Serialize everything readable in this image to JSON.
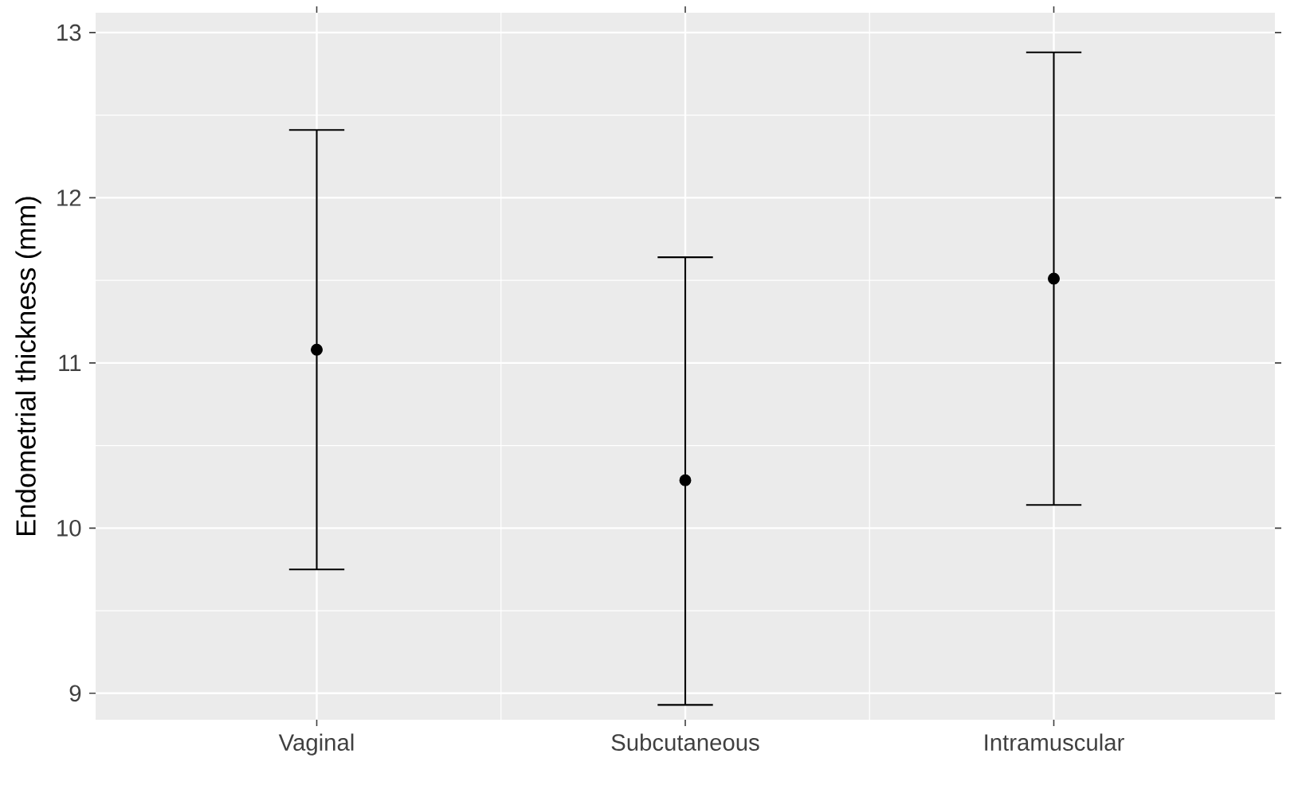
{
  "chart_data": {
    "type": "scatter",
    "ylabel": "Endometrial thickness (mm)",
    "categories": [
      "Vaginal",
      "Subcutaneous",
      "Intramuscular"
    ],
    "values": [
      11.08,
      10.29,
      11.51
    ],
    "errors": [
      [
        9.75,
        12.41
      ],
      [
        8.93,
        11.64
      ],
      [
        10.14,
        12.88
      ]
    ],
    "color": "#000000",
    "marker": "circle",
    "ylim": [
      8.84,
      13.12
    ],
    "yticks": [
      9,
      10,
      11,
      12,
      13
    ],
    "grid": true
  }
}
